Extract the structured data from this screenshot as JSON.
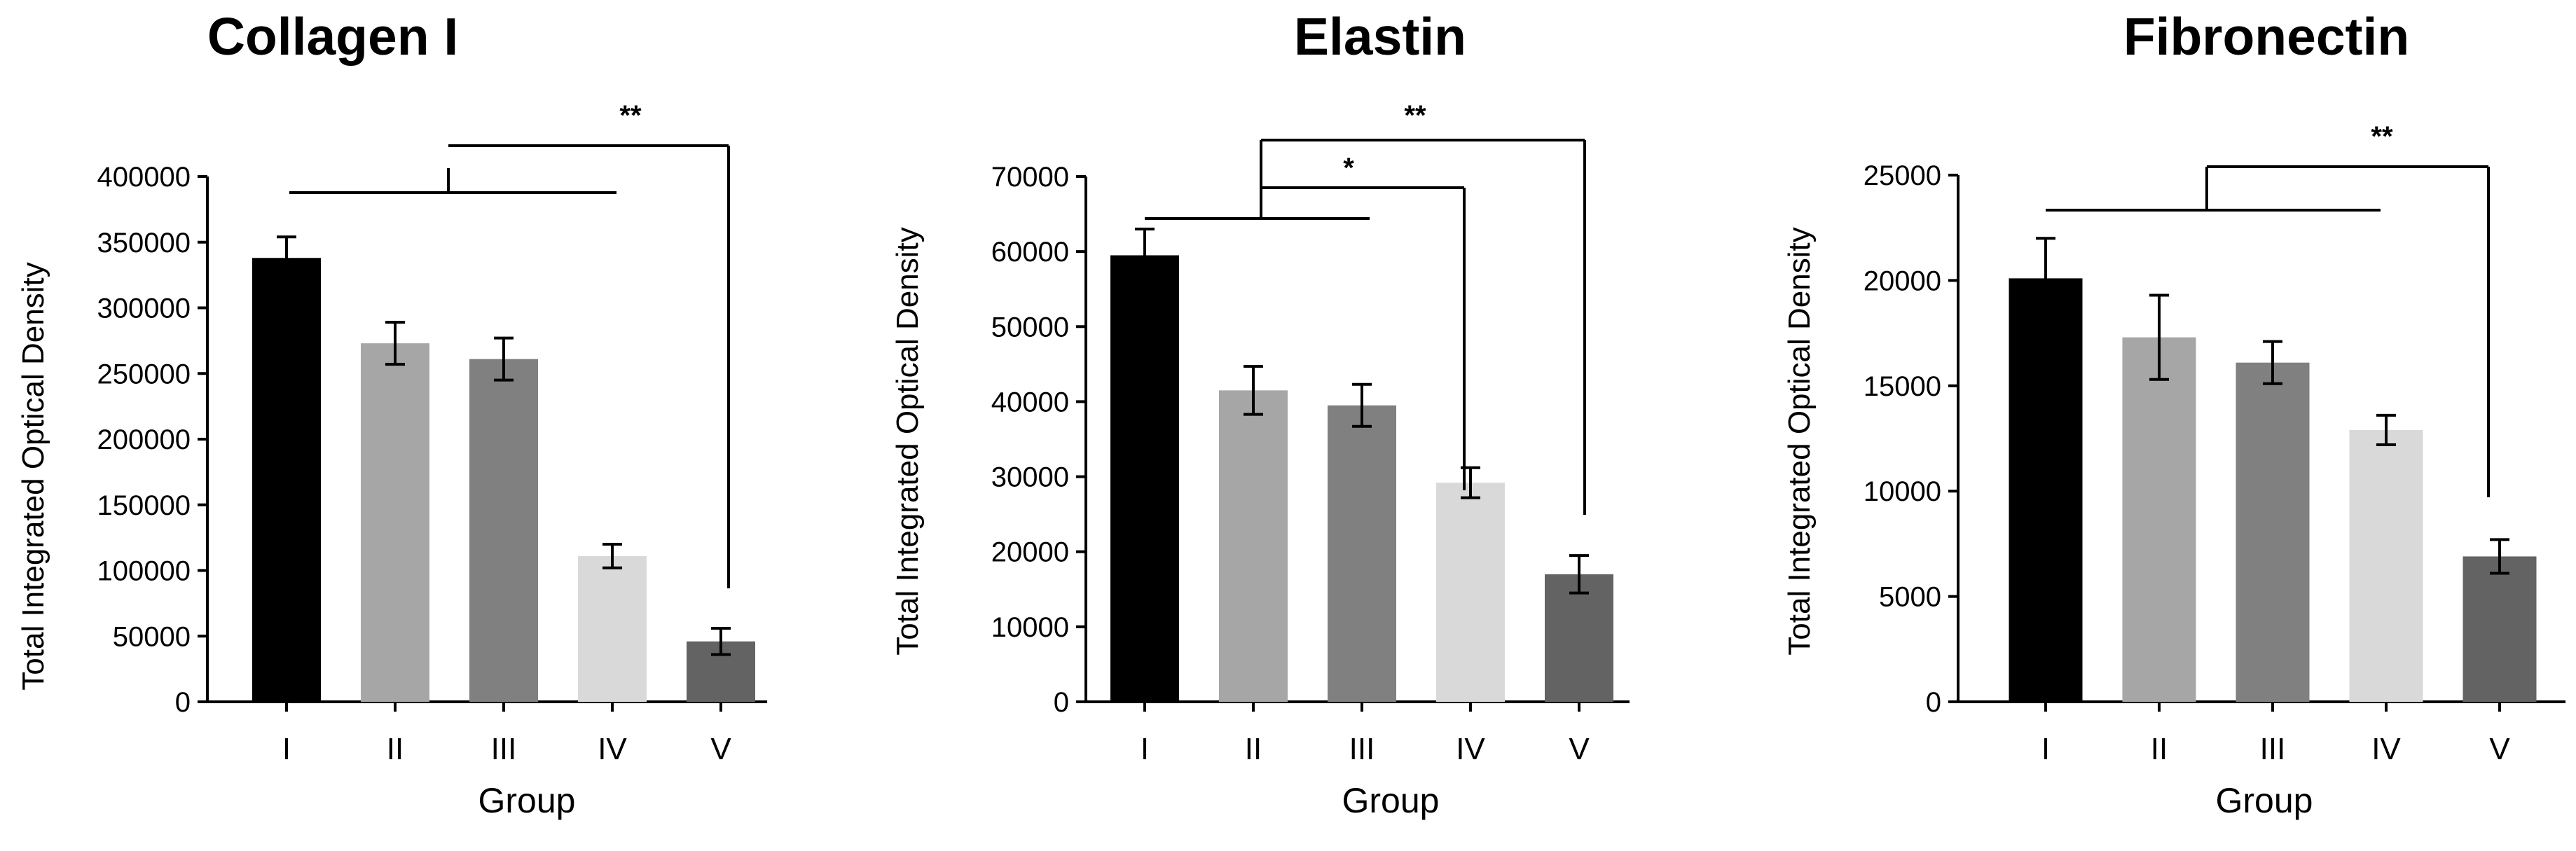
{
  "chart_data": [
    {
      "type": "bar",
      "title": "Collagen I",
      "xlabel": "Group",
      "ylabel": "Total Integrated Optical  Density",
      "categories": [
        "I",
        "II",
        "III",
        "IV",
        "V"
      ],
      "values": [
        338000,
        273000,
        261000,
        111000,
        46000
      ],
      "errors": [
        16000,
        16000,
        16000,
        9000,
        10000
      ],
      "colors": [
        "#000000",
        "#a6a6a6",
        "#808080",
        "#d9d9d9",
        "#636363"
      ],
      "ylim": [
        0,
        400000
      ],
      "yticks": [
        0,
        50000,
        100000,
        150000,
        200000,
        250000,
        300000,
        350000,
        400000
      ],
      "ytick_labels": [
        "0",
        "50000",
        "100000",
        "150000",
        "200000",
        "250000",
        "300000",
        "350000",
        "400000"
      ],
      "significance": [
        {
          "groups": [
            "I-IV",
            "V"
          ],
          "label": "**"
        }
      ]
    },
    {
      "type": "bar",
      "title": "Elastin",
      "xlabel": "Group",
      "ylabel": "Total Integrated Optical  Density",
      "categories": [
        "I",
        "II",
        "III",
        "IV",
        "V"
      ],
      "values": [
        59500,
        41500,
        39500,
        29200,
        17000
      ],
      "errors": [
        3500,
        3200,
        2800,
        2000,
        2500
      ],
      "colors": [
        "#000000",
        "#a6a6a6",
        "#808080",
        "#d9d9d9",
        "#636363"
      ],
      "ylim": [
        0,
        70000
      ],
      "yticks": [
        0,
        10000,
        20000,
        30000,
        40000,
        50000,
        60000,
        70000
      ],
      "ytick_labels": [
        "0",
        "10000",
        "20000",
        "30000",
        "40000",
        "50000",
        "60000",
        "70000"
      ],
      "significance": [
        {
          "groups": [
            "I-III",
            "IV"
          ],
          "label": "*"
        },
        {
          "groups": [
            "I-III",
            "V"
          ],
          "label": "**"
        }
      ]
    },
    {
      "type": "bar",
      "title": "Fibronectin",
      "xlabel": "Group",
      "ylabel": "Total Integrated Optical  Density",
      "categories": [
        "I",
        "II",
        "III",
        "IV",
        "V"
      ],
      "values": [
        20100,
        17300,
        16100,
        12900,
        6900
      ],
      "errors": [
        1900,
        2000,
        1000,
        700,
        800
      ],
      "colors": [
        "#000000",
        "#a6a6a6",
        "#808080",
        "#d9d9d9",
        "#636363"
      ],
      "ylim": [
        0,
        25000
      ],
      "yticks": [
        0,
        5000,
        10000,
        15000,
        20000,
        25000
      ],
      "ytick_labels": [
        "0",
        "5000",
        "10000",
        "15000",
        "20000",
        "25000"
      ],
      "significance": [
        {
          "groups": [
            "I-IV",
            "V"
          ],
          "label": "**"
        }
      ]
    }
  ]
}
